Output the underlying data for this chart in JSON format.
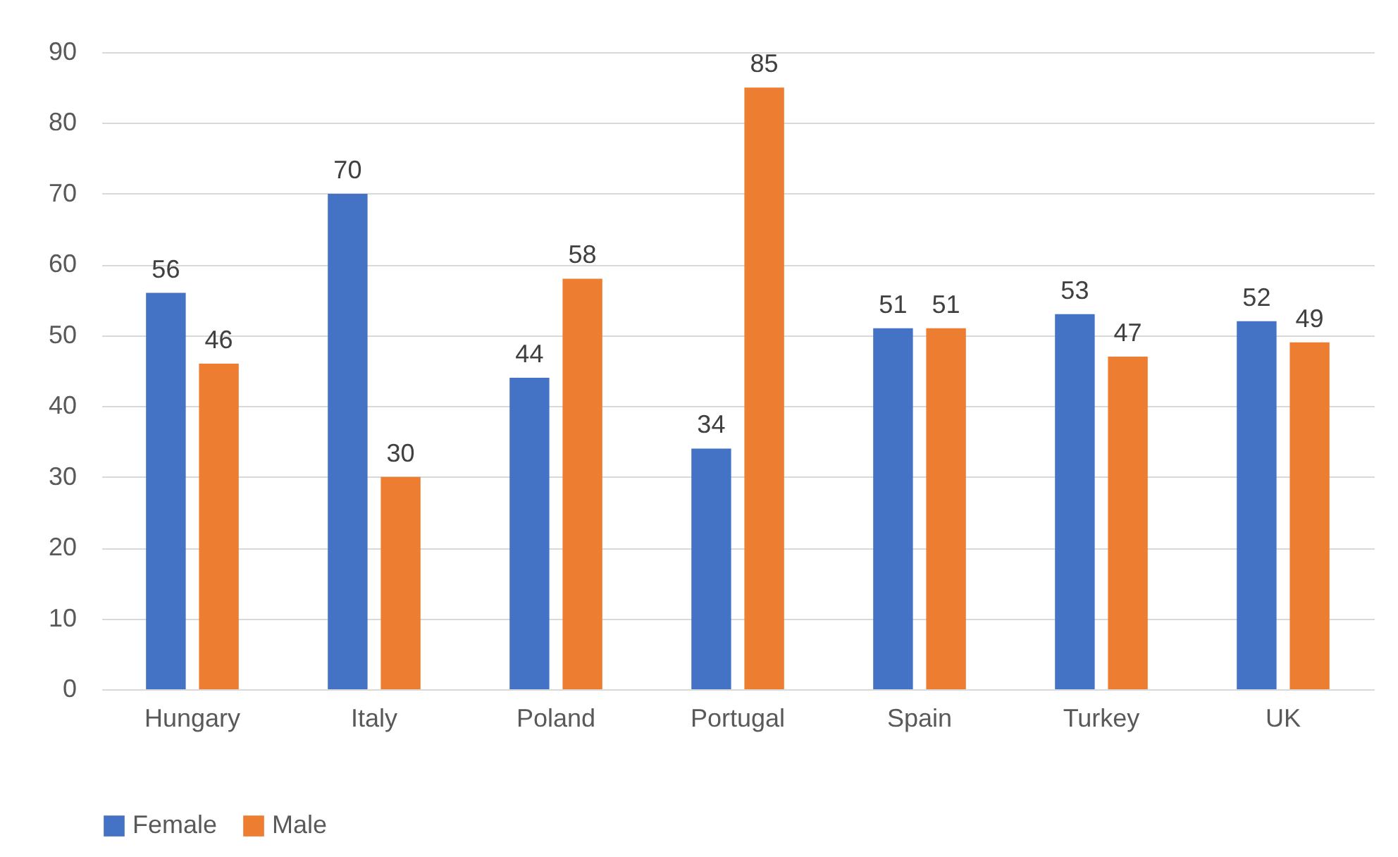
{
  "chart_data": {
    "type": "bar",
    "categories": [
      "Hungary",
      "Italy",
      "Poland",
      "Portugal",
      "Spain",
      "Turkey",
      "UK"
    ],
    "series": [
      {
        "name": "Female",
        "color": "#4472c4",
        "values": [
          56,
          70,
          44,
          34,
          51,
          53,
          52
        ]
      },
      {
        "name": "Male",
        "color": "#ed7d31",
        "values": [
          46,
          30,
          58,
          85,
          51,
          47,
          49
        ]
      }
    ],
    "ylim": [
      0,
      90
    ],
    "yticks": [
      0,
      10,
      20,
      30,
      40,
      50,
      60,
      70,
      80,
      90
    ],
    "grid": "y",
    "legend": "bottom",
    "data_labels": true
  }
}
